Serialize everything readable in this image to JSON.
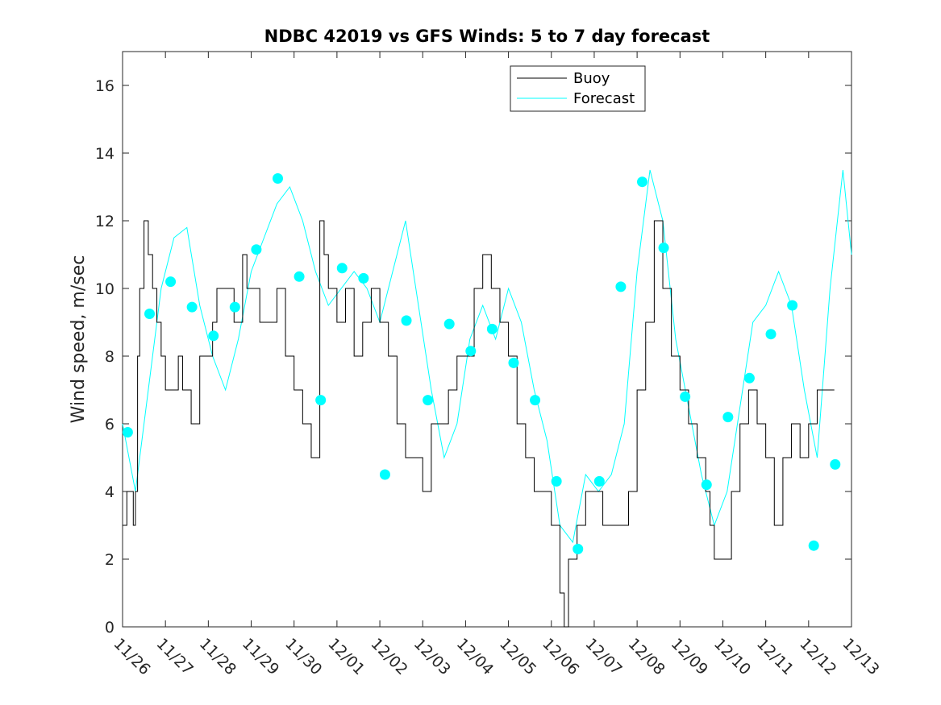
{
  "chart_data": {
    "type": "line",
    "title": "NDBC 42019 vs GFS Winds: 5 to 7 day forecast",
    "xlabel": "",
    "ylabel": "Wind speed, m/sec",
    "xlim": [
      0,
      17
    ],
    "ylim": [
      0,
      17
    ],
    "yticks": [
      0,
      2,
      4,
      6,
      8,
      10,
      12,
      14,
      16
    ],
    "xtick_positions": [
      0,
      1,
      2,
      3,
      4,
      5,
      6,
      7,
      8,
      9,
      10,
      11,
      12,
      13,
      14,
      15,
      16,
      17
    ],
    "xtick_labels": [
      "11/26",
      "11/27",
      "11/28",
      "11/29",
      "11/30",
      "12/01",
      "12/02",
      "12/03",
      "12/04",
      "12/05",
      "12/06",
      "12/07",
      "12/08",
      "12/09",
      "12/10",
      "12/11",
      "12/12",
      "12/13"
    ],
    "legend": {
      "position": "top-center",
      "entries": [
        "Buoy",
        "Forecast"
      ]
    },
    "colors": {
      "buoy": "#000000",
      "forecast": "#00FFFF",
      "axes": "#262626"
    },
    "series": [
      {
        "name": "Buoy",
        "x": [
          0,
          0.1,
          0.15,
          0.25,
          0.3,
          0.35,
          0.4,
          0.5,
          0.6,
          0.7,
          0.8,
          0.9,
          1.0,
          1.1,
          1.2,
          1.3,
          1.4,
          1.6,
          1.8,
          2.0,
          2.1,
          2.2,
          2.4,
          2.6,
          2.8,
          2.9,
          3.0,
          3.2,
          3.4,
          3.6,
          3.8,
          4.0,
          4.2,
          4.4,
          4.6,
          4.7,
          4.8,
          5.0,
          5.2,
          5.4,
          5.6,
          5.8,
          6.0,
          6.2,
          6.4,
          6.6,
          6.8,
          7.0,
          7.2,
          7.4,
          7.6,
          7.8,
          8.0,
          8.2,
          8.4,
          8.6,
          8.8,
          9.0,
          9.2,
          9.4,
          9.6,
          9.8,
          10.0,
          10.2,
          10.3,
          10.4,
          10.6,
          10.8,
          11.0,
          11.2,
          11.4,
          11.6,
          11.8,
          12.0,
          12.2,
          12.4,
          12.6,
          12.8,
          13.0,
          13.2,
          13.4,
          13.6,
          13.7,
          13.8,
          14.0,
          14.2,
          14.4,
          14.6,
          14.8,
          15.0,
          15.2,
          15.4,
          15.6,
          15.8,
          16.0,
          16.2,
          16.4
        ],
        "values": [
          3,
          4,
          4,
          3,
          4,
          8,
          10,
          12,
          11,
          10,
          9,
          8,
          7,
          7,
          7,
          8,
          7,
          6,
          8,
          8,
          9,
          10,
          10,
          9,
          11,
          10,
          10,
          9,
          9,
          10,
          8,
          7,
          6,
          5,
          12,
          11,
          10,
          9,
          10,
          8,
          9,
          10,
          9,
          8,
          6,
          5,
          5,
          4,
          6,
          6,
          7,
          8,
          8,
          10,
          11,
          10,
          9,
          8,
          6,
          5,
          4,
          4,
          3,
          1,
          0,
          2,
          3,
          4,
          4,
          3,
          3,
          3,
          4,
          7,
          9,
          12,
          10,
          8,
          7,
          6,
          5,
          4,
          3,
          2,
          2,
          4,
          6,
          7,
          6,
          5,
          3,
          5,
          6,
          5,
          6,
          7,
          7
        ]
      },
      {
        "name": "Forecast",
        "x": [
          0,
          0.3,
          0.6,
          0.9,
          1.2,
          1.5,
          1.8,
          2.1,
          2.4,
          2.7,
          3.0,
          3.3,
          3.6,
          3.9,
          4.2,
          4.5,
          4.8,
          5.1,
          5.4,
          5.7,
          6.0,
          6.3,
          6.6,
          6.9,
          7.2,
          7.5,
          7.8,
          8.1,
          8.4,
          8.7,
          9.0,
          9.3,
          9.6,
          9.9,
          10.2,
          10.5,
          10.8,
          11.1,
          11.4,
          11.7,
          12.0,
          12.3,
          12.6,
          12.9,
          13.2,
          13.5,
          13.8,
          14.1,
          14.4,
          14.7,
          15.0,
          15.3,
          15.6,
          15.9,
          16.2,
          16.5,
          16.8,
          17.0
        ],
        "values": [
          6.0,
          4.0,
          7.0,
          10.0,
          11.5,
          11.8,
          9.5,
          8.0,
          7.0,
          8.5,
          10.5,
          11.5,
          12.5,
          13.0,
          12.0,
          10.5,
          9.5,
          10.0,
          10.5,
          10.0,
          9.0,
          10.5,
          12.0,
          9.5,
          7.0,
          5.0,
          6.0,
          8.5,
          9.5,
          8.5,
          10.0,
          9.0,
          7.0,
          5.5,
          3.0,
          2.5,
          4.5,
          4.0,
          4.5,
          6.0,
          10.5,
          13.5,
          12.0,
          8.5,
          6.5,
          4.5,
          3.0,
          4.0,
          6.5,
          9.0,
          9.5,
          10.5,
          9.5,
          7.0,
          5.0,
          10.0,
          13.5,
          11.0
        ]
      },
      {
        "name": "Forecast sample points",
        "x": [
          0.12,
          0.63,
          1.12,
          1.62,
          2.12,
          2.62,
          3.12,
          3.62,
          4.12,
          4.62,
          5.12,
          5.62,
          6.12,
          6.62,
          7.12,
          7.62,
          8.12,
          8.62,
          9.12,
          9.62,
          10.12,
          10.62,
          11.12,
          11.62,
          12.12,
          12.62,
          13.12,
          13.62,
          14.12,
          14.62,
          15.12,
          15.62,
          16.12,
          16.62
        ],
        "values": [
          5.75,
          9.25,
          10.2,
          9.45,
          8.6,
          9.45,
          11.15,
          13.25,
          10.35,
          6.7,
          10.6,
          10.3,
          4.5,
          9.05,
          6.7,
          8.95,
          8.15,
          8.8,
          7.8,
          6.7,
          4.3,
          2.3,
          4.3,
          10.05,
          13.15,
          11.2,
          6.8,
          4.2,
          6.2,
          7.35,
          8.65,
          9.5,
          2.4,
          4.8
        ]
      }
    ]
  }
}
